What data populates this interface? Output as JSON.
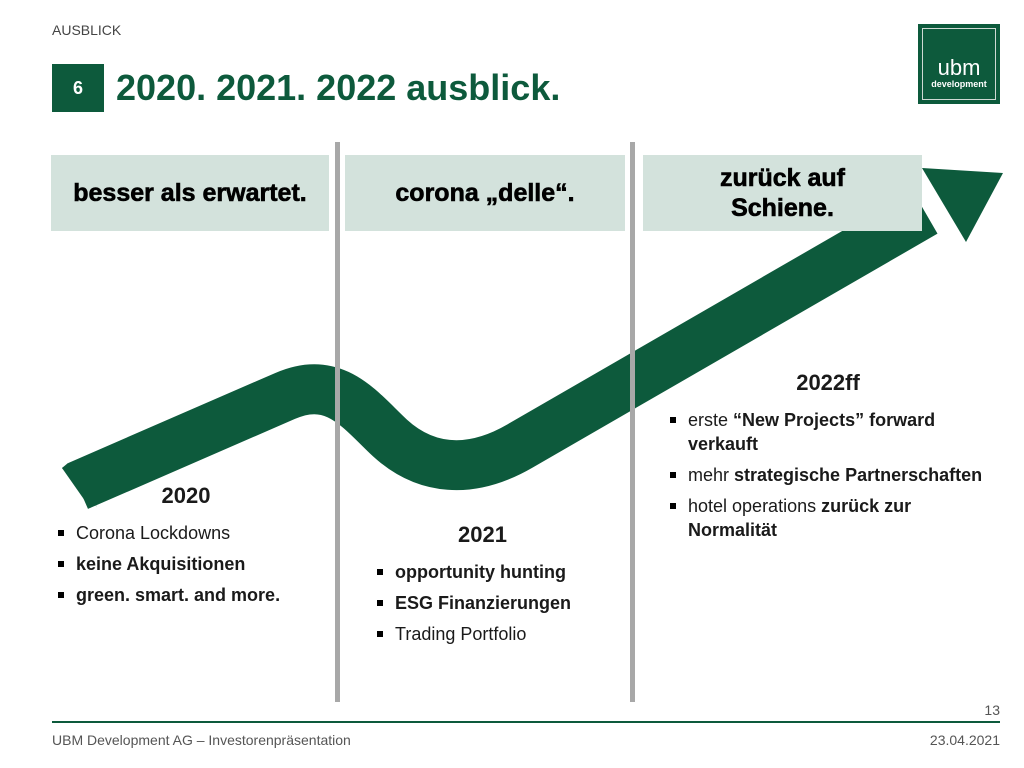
{
  "section": "AUSBLICK",
  "chapter_number": "6",
  "title": "2020. 2021. 2022 ausblick.",
  "logo": {
    "main": "ubm",
    "sub": "development"
  },
  "headers": [
    "besser als erwartet.",
    "corona „delle“.",
    "zurück auf Schiene."
  ],
  "columns": [
    {
      "year": "2020",
      "items": [
        [
          "Corona Lockdowns",
          ""
        ],
        [
          "",
          "keine Akquisitionen"
        ],
        [
          "",
          "green. smart. and more."
        ]
      ]
    },
    {
      "year": "2021",
      "items": [
        [
          "",
          "opportunity hunting"
        ],
        [
          "",
          "ESG Finanzierungen"
        ],
        [
          "Trading Portfolio",
          ""
        ]
      ]
    },
    {
      "year": "2022ff",
      "items": [
        [
          "erste ",
          "“New Projects” forward verkauft"
        ],
        [
          "mehr ",
          "strategische Partnerschaften"
        ],
        [
          "hotel operations ",
          "zurück zur Normalität"
        ]
      ]
    }
  ],
  "colors": {
    "brand": "#0d5a3c",
    "header_bg": "#d3e2dc"
  },
  "page_number": "13",
  "footer": "UBM Development AG – Investorenpräsentation",
  "date": "23.04.2021"
}
